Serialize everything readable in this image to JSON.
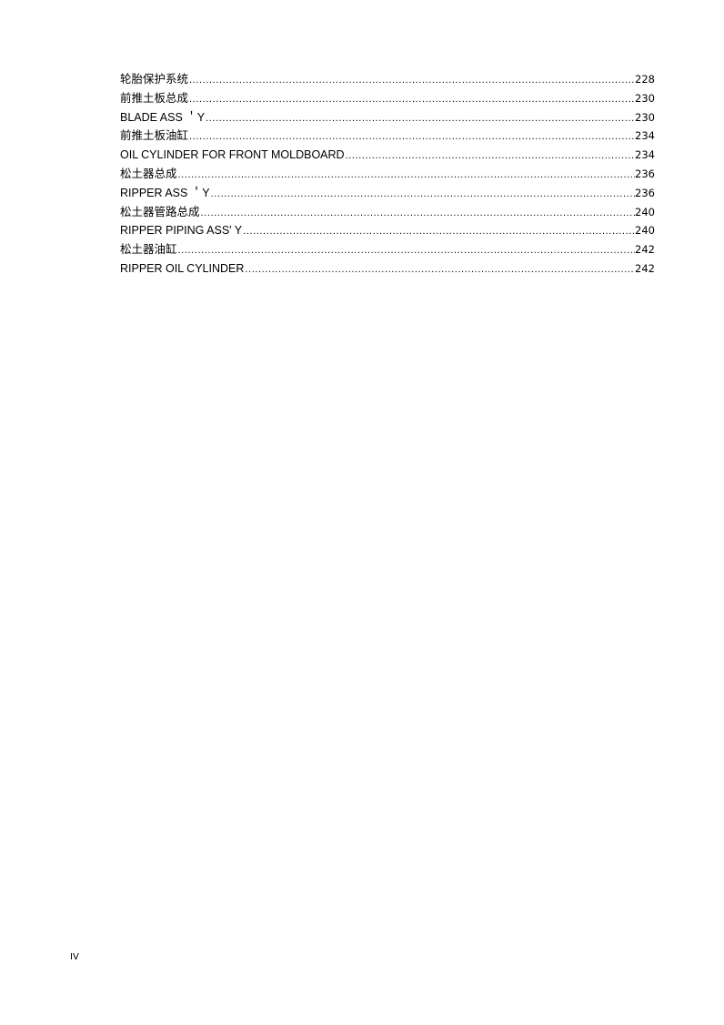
{
  "toc": {
    "entries": [
      {
        "title": "轮胎保护系统",
        "page": "228"
      },
      {
        "title": "前推土板总成",
        "page": "230"
      },
      {
        "title": "BLADE ASS ＇Y",
        "page": "230"
      },
      {
        "title": "前推土板油缸",
        "page": "234"
      },
      {
        "title": "OIL CYLINDER FOR FRONT MOLDBOARD",
        "page": "234"
      },
      {
        "title": "松土器总成",
        "page": "236"
      },
      {
        "title": "RIPPER ASS ＇Y",
        "page": "236"
      },
      {
        "title": "松土器管路总成",
        "page": "240"
      },
      {
        "title": "RIPPER PIPING ASS′ Y",
        "page": "240"
      },
      {
        "title": "松土器油缸",
        "page": "242"
      },
      {
        "title": "RIPPER OIL CYLINDER",
        "page": "242"
      }
    ]
  },
  "footer": {
    "page_label": "IV"
  }
}
